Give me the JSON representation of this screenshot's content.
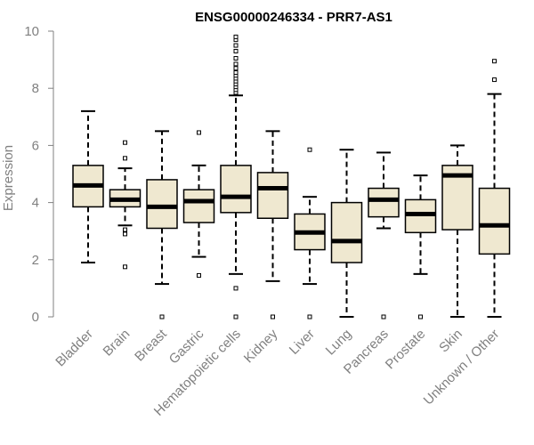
{
  "chart_data": {
    "type": "boxplot",
    "title": "ENSG00000246334 - PRR7-AS1",
    "xlabel": "",
    "ylabel": "Expression",
    "ylim": [
      0,
      10
    ],
    "yticks": [
      0,
      2,
      4,
      6,
      8,
      10
    ],
    "box_fill": "#efe8d0",
    "categories": [
      "Bladder",
      "Brain",
      "Breast",
      "Gastric",
      "Hematopoietic cells",
      "Kidney",
      "Liver",
      "Lung",
      "Pancreas",
      "Prostate",
      "Skin",
      "Unknown / Other"
    ],
    "boxes": [
      {
        "name": "Bladder",
        "whislo": 1.9,
        "q1": 3.85,
        "med": 4.6,
        "q3": 5.3,
        "whishi": 7.2,
        "fliers": []
      },
      {
        "name": "Brain",
        "whislo": 3.2,
        "q1": 3.85,
        "med": 4.1,
        "q3": 4.45,
        "whishi": 5.2,
        "fliers": [
          1.75,
          2.9,
          3.05,
          5.55,
          6.1
        ]
      },
      {
        "name": "Breast",
        "whislo": 1.15,
        "q1": 3.1,
        "med": 3.85,
        "q3": 4.8,
        "whishi": 6.5,
        "fliers": [
          0
        ]
      },
      {
        "name": "Gastric",
        "whislo": 2.1,
        "q1": 3.3,
        "med": 4.05,
        "q3": 4.45,
        "whishi": 5.3,
        "fliers": [
          1.45,
          6.45
        ]
      },
      {
        "name": "Hematopoietic cells",
        "whislo": 1.5,
        "q1": 3.65,
        "med": 4.2,
        "q3": 5.3,
        "whishi": 7.75,
        "fliers": [
          0,
          1.0,
          7.85,
          7.95,
          8.05,
          8.15,
          8.25,
          8.35,
          8.45,
          8.55,
          8.7,
          8.85,
          9.05,
          9.3,
          9.5,
          9.7,
          9.8
        ]
      },
      {
        "name": "Kidney",
        "whislo": 1.25,
        "q1": 3.45,
        "med": 4.5,
        "q3": 5.05,
        "whishi": 6.5,
        "fliers": [
          0
        ]
      },
      {
        "name": "Liver",
        "whislo": 1.15,
        "q1": 2.35,
        "med": 2.95,
        "q3": 3.6,
        "whishi": 4.2,
        "fliers": [
          0,
          5.85
        ]
      },
      {
        "name": "Lung",
        "whislo": 0.0,
        "q1": 1.9,
        "med": 2.65,
        "q3": 4.0,
        "whishi": 5.85,
        "fliers": []
      },
      {
        "name": "Pancreas",
        "whislo": 3.1,
        "q1": 3.5,
        "med": 4.1,
        "q3": 4.5,
        "whishi": 5.75,
        "fliers": [
          0
        ]
      },
      {
        "name": "Prostate",
        "whislo": 1.5,
        "q1": 2.95,
        "med": 3.6,
        "q3": 4.1,
        "whishi": 4.95,
        "fliers": [
          0
        ]
      },
      {
        "name": "Skin",
        "whislo": 0.0,
        "q1": 3.05,
        "med": 4.95,
        "q3": 5.3,
        "whishi": 6.0,
        "fliers": []
      },
      {
        "name": "Unknown / Other",
        "whislo": 0.0,
        "q1": 2.2,
        "med": 3.2,
        "q3": 4.5,
        "whishi": 7.8,
        "fliers": [
          8.3,
          8.95
        ]
      }
    ]
  }
}
